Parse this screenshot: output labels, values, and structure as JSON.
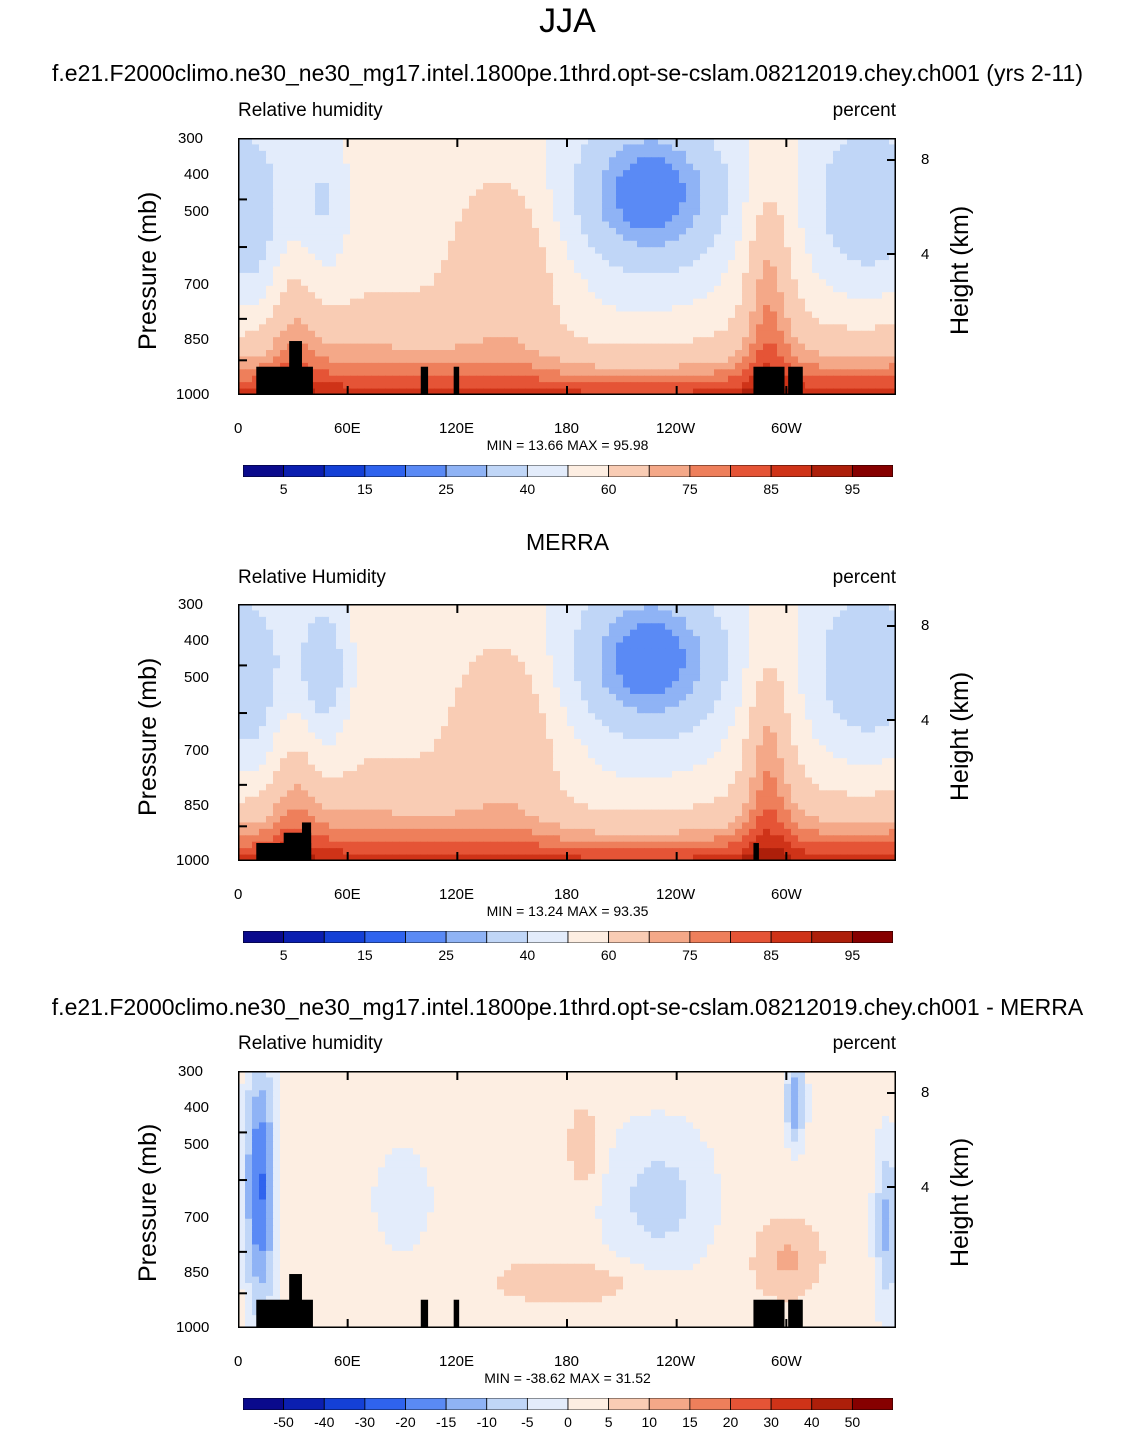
{
  "title": "JJA",
  "colors": {
    "contour_palette": [
      "#0a0a8c",
      "#0b1fb0",
      "#1440d6",
      "#2f63ee",
      "#5a8af5",
      "#8fb3f5",
      "#c0d6f7",
      "#e3ecfb",
      "#fdeee2",
      "#f9ccb4",
      "#f4a888",
      "#ee7f5b",
      "#e55436",
      "#cf3318",
      "#ad1f0a",
      "#860000"
    ],
    "land_mask": "#000000"
  },
  "chart_data": [
    {
      "type": "heatmap",
      "case_title": "f.e21.F2000climo.ne30_ne30_mg17.intel.1800pe.1thrd.opt-se-cslam.08212019.chey.ch001 (yrs 2-11)",
      "left_label": "Relative humidity",
      "right_label": "percent",
      "ylabel": "Pressure (mb)",
      "ylabel_right": "Height (km)",
      "x_ticks": [
        "0",
        "60E",
        "120E",
        "180",
        "120W",
        "60W"
      ],
      "x_range_deg": [
        0,
        360
      ],
      "y_ticks": [
        "300",
        "400",
        "500",
        "700",
        "850",
        "1000"
      ],
      "y_range_mb": [
        300,
        1000
      ],
      "height_ticks": [
        "8",
        "4"
      ],
      "min_max": "MIN =  13.66  MAX =  95.98",
      "colorbar_labels": [
        "5",
        "15",
        "25",
        "40",
        "60",
        "75",
        "85",
        "95"
      ],
      "colorbar_levels": [
        2.5,
        5,
        10,
        15,
        20,
        25,
        30,
        40,
        50,
        60,
        70,
        75,
        80,
        85,
        90,
        95,
        97.5
      ]
    },
    {
      "type": "heatmap",
      "case_title": "MERRA",
      "left_label": "Relative Humidity",
      "right_label": "percent",
      "ylabel": "Pressure (mb)",
      "ylabel_right": "Height (km)",
      "x_ticks": [
        "0",
        "60E",
        "120E",
        "180",
        "120W",
        "60W"
      ],
      "x_range_deg": [
        0,
        360
      ],
      "y_ticks": [
        "300",
        "400",
        "500",
        "700",
        "850",
        "1000"
      ],
      "y_range_mb": [
        300,
        1000
      ],
      "height_ticks": [
        "8",
        "4"
      ],
      "min_max": "MIN =  13.24  MAX =  93.35",
      "colorbar_labels": [
        "5",
        "15",
        "25",
        "40",
        "60",
        "75",
        "85",
        "95"
      ],
      "colorbar_levels": [
        2.5,
        5,
        10,
        15,
        20,
        25,
        30,
        40,
        50,
        60,
        70,
        75,
        80,
        85,
        90,
        95,
        97.5
      ]
    },
    {
      "type": "heatmap",
      "case_title": "f.e21.F2000climo.ne30_ne30_mg17.intel.1800pe.1thrd.opt-se-cslam.08212019.chey.ch001 - MERRA",
      "left_label": "Relative humidity",
      "right_label": "percent",
      "ylabel": "Pressure (mb)",
      "ylabel_right": "Height (km)",
      "x_ticks": [
        "0",
        "60E",
        "120E",
        "180",
        "120W",
        "60W"
      ],
      "x_range_deg": [
        0,
        360
      ],
      "y_ticks": [
        "300",
        "400",
        "500",
        "700",
        "850",
        "1000"
      ],
      "y_range_mb": [
        300,
        1000
      ],
      "height_ticks": [
        "8",
        "4"
      ],
      "min_max": "MIN = -38.62  MAX =  31.52",
      "colorbar_labels": [
        "-50",
        "-40",
        "-30",
        "-20",
        "-15",
        "-10",
        "-5",
        "0",
        "5",
        "10",
        "15",
        "20",
        "30",
        "40",
        "50"
      ],
      "colorbar_levels": [
        -60,
        -50,
        -40,
        -30,
        -20,
        -15,
        -10,
        -5,
        0,
        5,
        10,
        15,
        20,
        30,
        40,
        50,
        60
      ]
    }
  ]
}
